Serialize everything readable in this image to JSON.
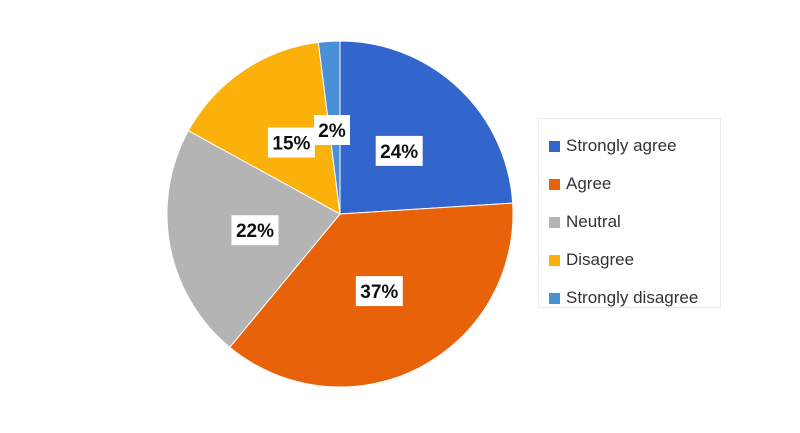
{
  "chart_data": {
    "type": "pie",
    "title": "",
    "slices": [
      {
        "label": "Strongly agree",
        "value": 24,
        "display": "24%",
        "color": "#3366CC"
      },
      {
        "label": "Agree",
        "value": 37,
        "display": "37%",
        "color": "#E8620A"
      },
      {
        "label": "Neutral",
        "value": 22,
        "display": "22%",
        "color": "#B4B4B4"
      },
      {
        "label": "Disagree",
        "value": 15,
        "display": "15%",
        "color": "#FCB10A"
      },
      {
        "label": "Strongly disagree",
        "value": 2,
        "display": "2%",
        "color": "#4A90D9"
      }
    ],
    "legend_position": "right"
  }
}
